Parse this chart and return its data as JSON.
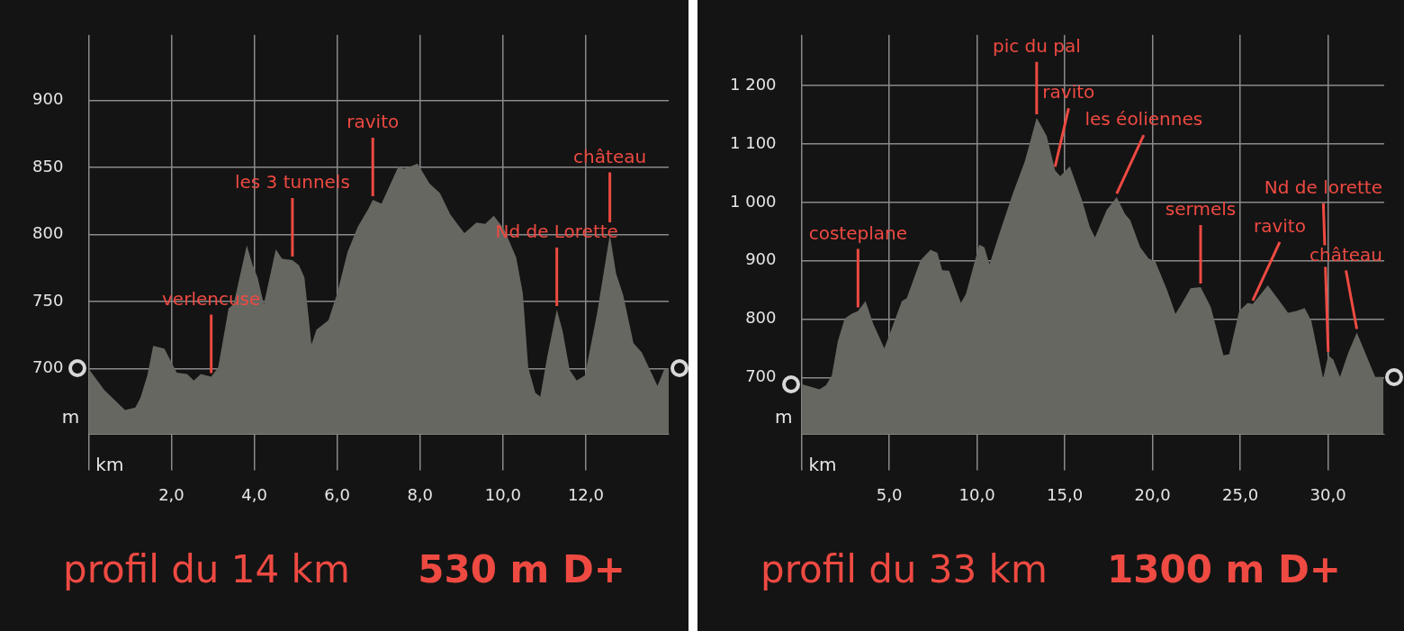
{
  "chart_data": [
    {
      "type": "area",
      "title": "profil du 14 km",
      "subtitle": "530 m D+",
      "xlabel": "km",
      "ylabel": "m",
      "color": "#676762",
      "grid": true,
      "xlim": [
        0,
        14
      ],
      "ylim": [
        651,
        949
      ],
      "xticks": [
        {
          "value": 0,
          "label": null
        },
        {
          "value": 2,
          "label": "2,0"
        },
        {
          "value": 4,
          "label": "4,0"
        },
        {
          "value": 6,
          "label": "6,0"
        },
        {
          "value": 8,
          "label": "8,0"
        },
        {
          "value": 10,
          "label": "10,0"
        },
        {
          "value": 12,
          "label": "12,0"
        }
      ],
      "yticks": [
        700,
        750,
        800,
        850,
        900
      ],
      "x": [
        0,
        0.38,
        0.88,
        1.13,
        1.25,
        1.42,
        1.56,
        1.83,
        2.13,
        2.38,
        2.54,
        2.71,
        2.96,
        3.13,
        3.38,
        3.5,
        3.82,
        3.96,
        4.08,
        4.23,
        4.52,
        4.67,
        4.92,
        5.08,
        5.21,
        5.38,
        5.5,
        5.79,
        6.0,
        6.25,
        6.5,
        6.75,
        6.86,
        7.07,
        7.48,
        7.61,
        7.94,
        8.23,
        8.48,
        8.73,
        9.07,
        9.36,
        9.57,
        9.78,
        10.03,
        10.32,
        10.48,
        10.61,
        10.78,
        10.9,
        11.07,
        11.3,
        11.44,
        11.61,
        11.78,
        11.98,
        12.27,
        12.58,
        12.73,
        12.9,
        13.15,
        13.35,
        13.73,
        13.9,
        14
      ],
      "values": [
        700,
        684,
        669,
        671,
        678,
        695,
        717,
        715,
        697,
        696,
        691,
        696,
        694,
        701,
        745,
        748,
        792,
        777,
        768,
        748,
        789,
        782,
        781,
        777,
        768,
        718,
        729,
        736,
        756,
        787,
        806,
        819,
        826,
        823,
        851,
        849,
        853,
        838,
        831,
        815,
        801,
        809,
        808,
        814,
        804,
        783,
        756,
        701,
        682,
        679,
        709,
        744,
        728,
        699,
        691,
        695,
        741,
        800,
        771,
        755,
        719,
        712,
        687,
        700,
        700
      ],
      "annotations": [
        {
          "text": "verlencuse",
          "x": 2.96,
          "y": 694
        },
        {
          "text": "les 3 tunnels",
          "x": 4.92,
          "y": 781
        },
        {
          "text": "ravito",
          "x": 6.86,
          "y": 826
        },
        {
          "text": "Nd de Lorette",
          "x": 11.3,
          "y": 744
        },
        {
          "text": "château",
          "x": 12.58,
          "y": 800
        }
      ]
    },
    {
      "type": "area",
      "title": "profil du 33 km",
      "subtitle": "1300 m D+",
      "xlabel": "km",
      "ylabel": "m",
      "color": "#676762",
      "grid": true,
      "xlim": [
        0,
        33.2
      ],
      "ylim": [
        603,
        1287
      ],
      "xticks": [
        {
          "value": 0,
          "label": null
        },
        {
          "value": 5,
          "label": "5,0"
        },
        {
          "value": 10,
          "label": "10,0"
        },
        {
          "value": 15,
          "label": "15,0"
        },
        {
          "value": 20,
          "label": "20,0"
        },
        {
          "value": 25,
          "label": "25,0"
        },
        {
          "value": 30,
          "label": "30,0"
        }
      ],
      "yticks": [
        700,
        800,
        900,
        {
          "value": 1000,
          "label": "1 000"
        },
        {
          "value": 1100,
          "label": "1 100"
        },
        {
          "value": 1200,
          "label": "1 200"
        }
      ],
      "x": [
        0,
        0.54,
        1.02,
        1.4,
        1.73,
        2.07,
        2.46,
        2.84,
        3.22,
        3.65,
        4.09,
        4.72,
        5.14,
        5.72,
        6.0,
        6.78,
        7.35,
        7.74,
        8.02,
        8.41,
        9.08,
        9.37,
        10.13,
        10.42,
        10.71,
        11.29,
        12.05,
        12.72,
        13.4,
        13.97,
        14.45,
        14.74,
        15.29,
        15.96,
        16.43,
        16.72,
        17.39,
        17.96,
        18.44,
        18.73,
        19.3,
        19.78,
        20.16,
        20.83,
        21.31,
        21.69,
        22.17,
        22.74,
        23.32,
        24.04,
        24.37,
        24.94,
        25.42,
        25.71,
        26.57,
        27.24,
        27.72,
        28.19,
        28.67,
        29.05,
        29.72,
        30.01,
        30.3,
        30.68,
        31.16,
        31.64,
        32.11,
        32.69,
        33.16
      ],
      "values": [
        689,
        684,
        680,
        687,
        704,
        762,
        801,
        809,
        814,
        831,
        792,
        750,
        784,
        831,
        836,
        901,
        919,
        914,
        884,
        883,
        828,
        843,
        928,
        923,
        894,
        948,
        1016,
        1070,
        1145,
        1114,
        1055,
        1045,
        1062,
        1006,
        958,
        940,
        987,
        1009,
        980,
        970,
        923,
        904,
        899,
        850,
        809,
        828,
        853,
        855,
        821,
        738,
        740,
        814,
        828,
        826,
        858,
        831,
        811,
        814,
        819,
        797,
        699,
        738,
        731,
        701,
        743,
        777,
        743,
        701,
        701
      ],
      "annotations": [
        {
          "text": "costeplane",
          "x": 3.22,
          "y": 814
        },
        {
          "text": "pic du pal",
          "x": 13.4,
          "y": 1145
        },
        {
          "text": "ravito",
          "x": 14.45,
          "y": 1055
        },
        {
          "text": "les éoliennes",
          "x": 17.96,
          "y": 1009
        },
        {
          "text": "sermels",
          "x": 22.74,
          "y": 855
        },
        {
          "text": "ravito",
          "x": 25.71,
          "y": 826
        },
        {
          "text": "Nd de lorette",
          "x": 30.01,
          "y": 738
        },
        {
          "text": "château",
          "x": 31.64,
          "y": 777
        }
      ]
    }
  ]
}
